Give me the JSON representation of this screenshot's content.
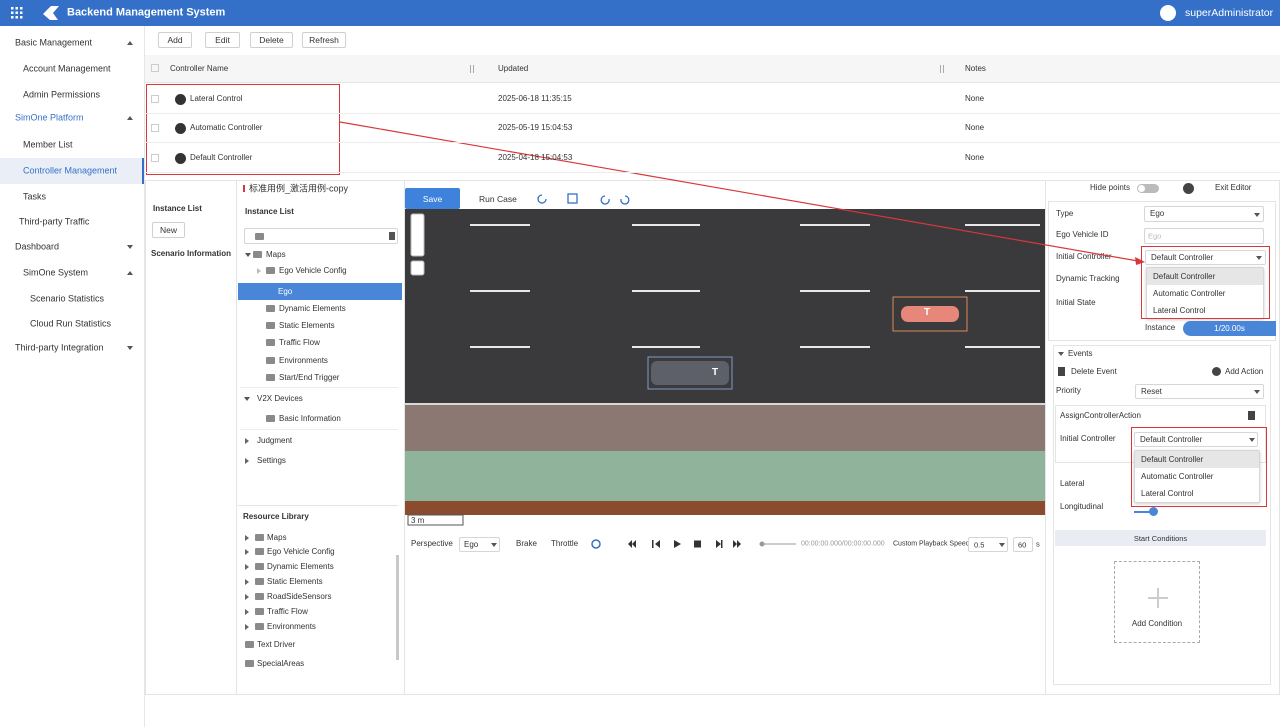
{
  "header": {
    "title": "Backend Management System",
    "user": "superAdministrator"
  },
  "sidebar": {
    "items": [
      "Basic Management",
      "Account Management",
      "Admin Permissions",
      "SimOne Platform",
      "Member List",
      "Controller Management",
      "Tasks",
      "Third-party Traffic",
      "Dashboard",
      "SimOne System",
      "Scenario Statistics",
      "Cloud Run Statistics",
      "Third-party Integration"
    ]
  },
  "toolbar": [
    "Add",
    "Edit",
    "Delete",
    "Refresh"
  ],
  "table": {
    "columns": [
      "Controller Name",
      "Updated",
      "Notes"
    ],
    "rows": [
      [
        "Lateral Control",
        "2025-06-18 11:35:15",
        "None"
      ],
      [
        "Automatic Controller",
        "2025-05-19 15:04:53",
        "None"
      ],
      [
        "Default Controller",
        "2025-04-18 15:04:53",
        "None"
      ]
    ]
  },
  "editor": {
    "scenario_title": "标准用例_激活用例-copy",
    "side": {
      "instance_list": "Instance List",
      "new": "New",
      "scenario_information": "Scenario Information"
    },
    "tree": {
      "title": "Instance List",
      "items": [
        "Maps",
        "Ego Vehicle Config",
        "Ego",
        "Dynamic Elements",
        "Static Elements",
        "Traffic Flow",
        "Environments",
        "Start/End Trigger",
        "V2X Devices",
        "Basic Information",
        "Judgment",
        "Settings"
      ]
    },
    "resource_library": {
      "title": "Resource Library",
      "items": [
        "Maps",
        "Ego Vehicle Config",
        "Dynamic Elements",
        "Static Elements",
        "RoadSideSensors",
        "Traffic Flow",
        "Environments",
        "Text Driver",
        "SpecialAreas"
      ]
    },
    "canvas": {
      "save": "Save",
      "run_case": "Run Case",
      "scale": "3 m",
      "car_label_1": "T",
      "car_label_2": "T"
    },
    "playback": {
      "perspective": "Perspective",
      "view": "Ego",
      "brake": "Brake",
      "throttle": "Throttle",
      "time": "00:00:00.000/00:00:00.000",
      "speed_label": "Custom Playback Speed",
      "speed": "0.5",
      "fps": "60",
      "unit": "s"
    },
    "properties": {
      "hide_points": "Hide points",
      "exit_editor": "Exit Editor",
      "type_label": "Type",
      "type_value": "Ego",
      "ego_id_label": "Ego Vehicle ID",
      "ego_id_placeholder": "Ego",
      "initial_controller_label": "Initial Controller",
      "initial_controller_value": "Default Controller",
      "controller_options": [
        "Default Controller",
        "Automatic Controller",
        "Lateral Control"
      ],
      "dynamic_tracking": "Dynamic Tracking",
      "initial_state": "Initial State",
      "instance": "Instance",
      "time": "1/20.00s"
    },
    "events": {
      "title": "Events",
      "delete_event": "Delete Event",
      "add_action": "Add Action",
      "priority_label": "Priority",
      "priority_value": "Reset",
      "action": "AssignControllerAction",
      "initial_controller_label": "Initial Controller",
      "initial_controller_value": "Default Controller",
      "controller_options": [
        "Default Controller",
        "Automatic Controller",
        "Lateral Control"
      ],
      "lateral": "Lateral",
      "longitudinal": "Longitudinal",
      "start_conditions": "Start Conditions",
      "add_condition": "Add Condition"
    }
  }
}
